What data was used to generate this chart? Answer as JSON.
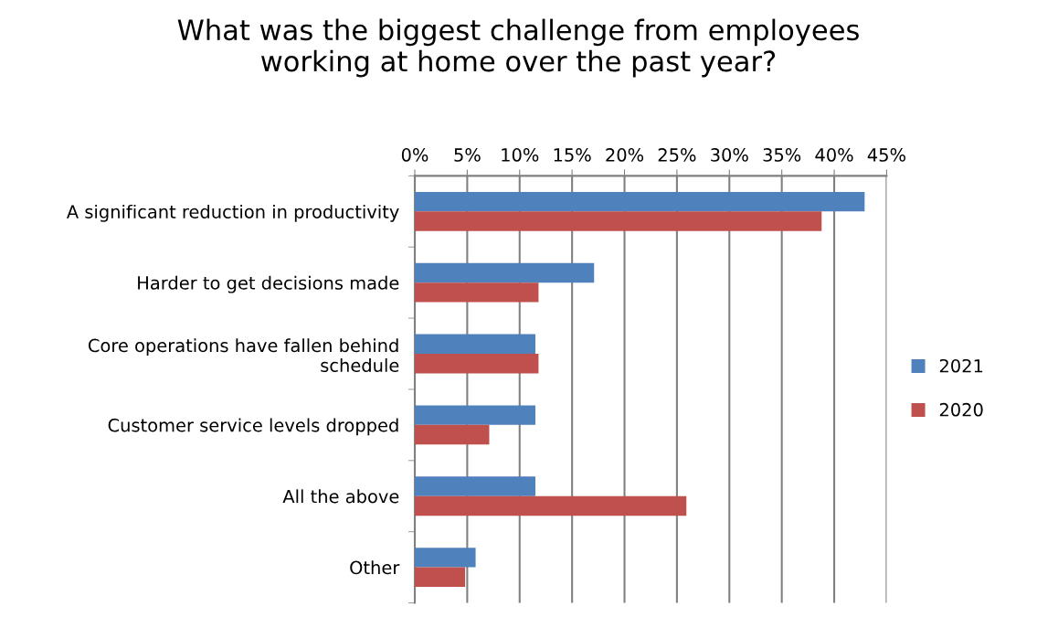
{
  "chart_data": {
    "type": "bar",
    "orientation": "horizontal",
    "title": "What was the biggest challenge from employees\nworking at home over the past year?",
    "categories": [
      "A significant reduction in productivity",
      "Harder to get decisions made",
      "Core operations have fallen behind\nschedule",
      "Customer service levels dropped",
      "All the above",
      "Other"
    ],
    "series": [
      {
        "name": "2021",
        "color": "#4f81bd",
        "values": [
          42.9,
          17.1,
          11.5,
          11.5,
          11.5,
          5.8
        ]
      },
      {
        "name": "2020",
        "color": "#c0504d",
        "values": [
          38.8,
          11.8,
          11.8,
          7.1,
          25.9,
          4.8
        ]
      }
    ],
    "xlim": [
      0,
      45
    ],
    "xticks": [
      {
        "value": 0,
        "label": "0%"
      },
      {
        "value": 5,
        "label": "5%"
      },
      {
        "value": 10,
        "label": "10%"
      },
      {
        "value": 15,
        "label": "15%"
      },
      {
        "value": 20,
        "label": "20%"
      },
      {
        "value": 25,
        "label": "25%"
      },
      {
        "value": 30,
        "label": "30%"
      },
      {
        "value": 35,
        "label": "35%"
      },
      {
        "value": 40,
        "label": "40%"
      },
      {
        "value": 45,
        "label": "45%"
      }
    ],
    "grid": "x",
    "legend": "right"
  }
}
